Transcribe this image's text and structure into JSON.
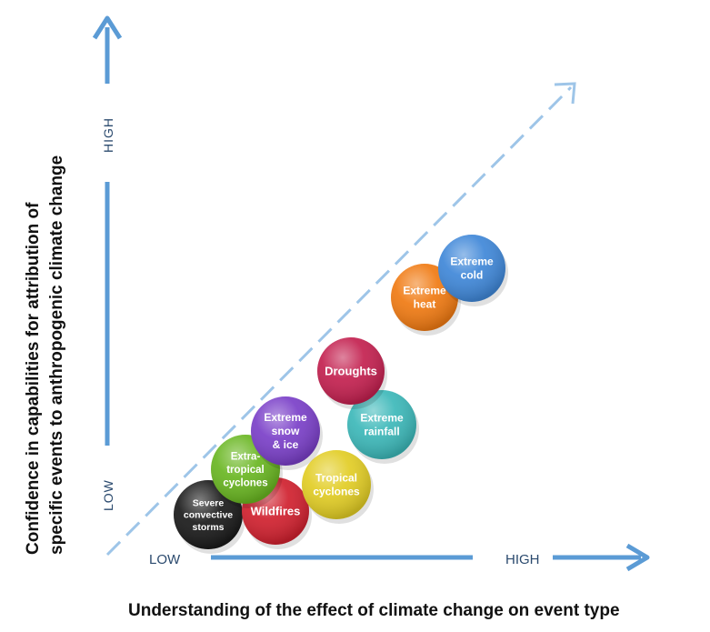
{
  "x_axis": {
    "title": "Understanding of the effect of climate change on event type",
    "low": "LOW",
    "high": "HIGH"
  },
  "y_axis": {
    "title_line1": "Confidence in capabilities for attribution of",
    "title_line2": "specific events to anthropogenic climate change",
    "low": "LOW",
    "high": "HIGH"
  },
  "colors": {
    "axis": "#5b9bd5",
    "diagonal": "#9ec5e8"
  },
  "events": [
    {
      "key": "severe-convective-storms",
      "lines": [
        "Severe",
        "convective",
        "storms"
      ],
      "color": "#1a1a1a"
    },
    {
      "key": "wildfires",
      "lines": [
        "Wildfires"
      ],
      "color": "#d0202e"
    },
    {
      "key": "extra-tropical-cyclones",
      "lines": [
        "Extra-",
        "tropical",
        "cyclones"
      ],
      "color": "#69b621"
    },
    {
      "key": "tropical-cyclones",
      "lines": [
        "Tropical",
        "cyclones"
      ],
      "color": "#e2cd24"
    },
    {
      "key": "extreme-snow-ice",
      "lines": [
        "Extreme",
        "snow",
        "& ice"
      ],
      "color": "#7a3fc8"
    },
    {
      "key": "extreme-rainfall",
      "lines": [
        "Extreme",
        "rainfall"
      ],
      "color": "#3cb8b9"
    },
    {
      "key": "droughts",
      "lines": [
        "Droughts"
      ],
      "color": "#c3204f"
    },
    {
      "key": "extreme-heat",
      "lines": [
        "Extreme",
        "heat"
      ],
      "color": "#f07a12"
    },
    {
      "key": "extreme-cold",
      "lines": [
        "Extreme",
        "cold"
      ],
      "color": "#3f87d8"
    }
  ]
}
